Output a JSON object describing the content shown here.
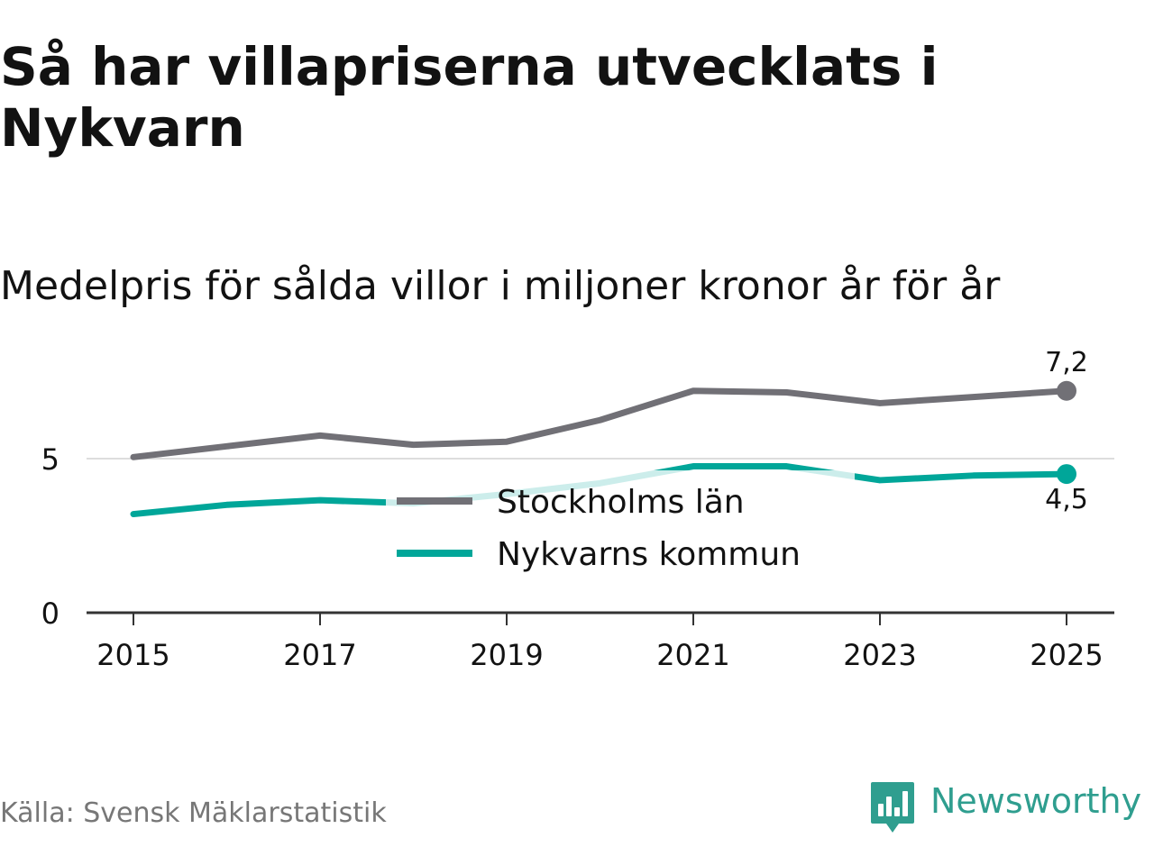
{
  "title": "Så har villapriserna utvecklats i Nykvarn",
  "subtitle": "Medelpris för sålda villor i miljoner kronor år för år",
  "source": "Källa: Svensk Mäklarstatistik",
  "brand": {
    "name": "Newsworthy",
    "logo_icon": "newsworthy-bar-chart-icon",
    "color": "#2f9e8f"
  },
  "colors": {
    "stockholm": "#717076",
    "nykvarn": "#00a699",
    "gridline": "#dddddd",
    "axis": "#333333",
    "text": "#121212",
    "source": "#777777"
  },
  "chart_data": {
    "type": "line",
    "title": "Så har villapriserna utvecklats i Nykvarn",
    "subtitle": "Medelpris för sålda villor i miljoner kronor år för år",
    "xlabel": "",
    "ylabel": "",
    "x": [
      2015,
      2016,
      2017,
      2018,
      2019,
      2020,
      2021,
      2022,
      2023,
      2024,
      2025
    ],
    "xticks": [
      "2015",
      "2017",
      "2019",
      "2021",
      "2023",
      "2025"
    ],
    "xlim": [
      2014.5,
      2025.5
    ],
    "ylim": [
      0,
      7.6
    ],
    "yticks": [
      "0",
      "5"
    ],
    "grid": "horizontal gridline at 5",
    "legend": {
      "placement": "center",
      "entries": [
        "Stockholms län",
        "Nykvarns kommun"
      ]
    },
    "series": [
      {
        "name": "Stockholms län",
        "color": "#717076",
        "values": [
          5.05,
          5.4,
          5.75,
          5.45,
          5.55,
          6.25,
          7.2,
          7.15,
          6.8,
          7.0,
          7.2
        ],
        "end_label": "7,2"
      },
      {
        "name": "Nykvarns kommun",
        "color": "#00a699",
        "values": [
          3.2,
          3.5,
          3.65,
          3.55,
          3.85,
          4.2,
          4.75,
          4.75,
          4.3,
          4.45,
          4.5
        ],
        "end_label": "4,5"
      }
    ]
  }
}
